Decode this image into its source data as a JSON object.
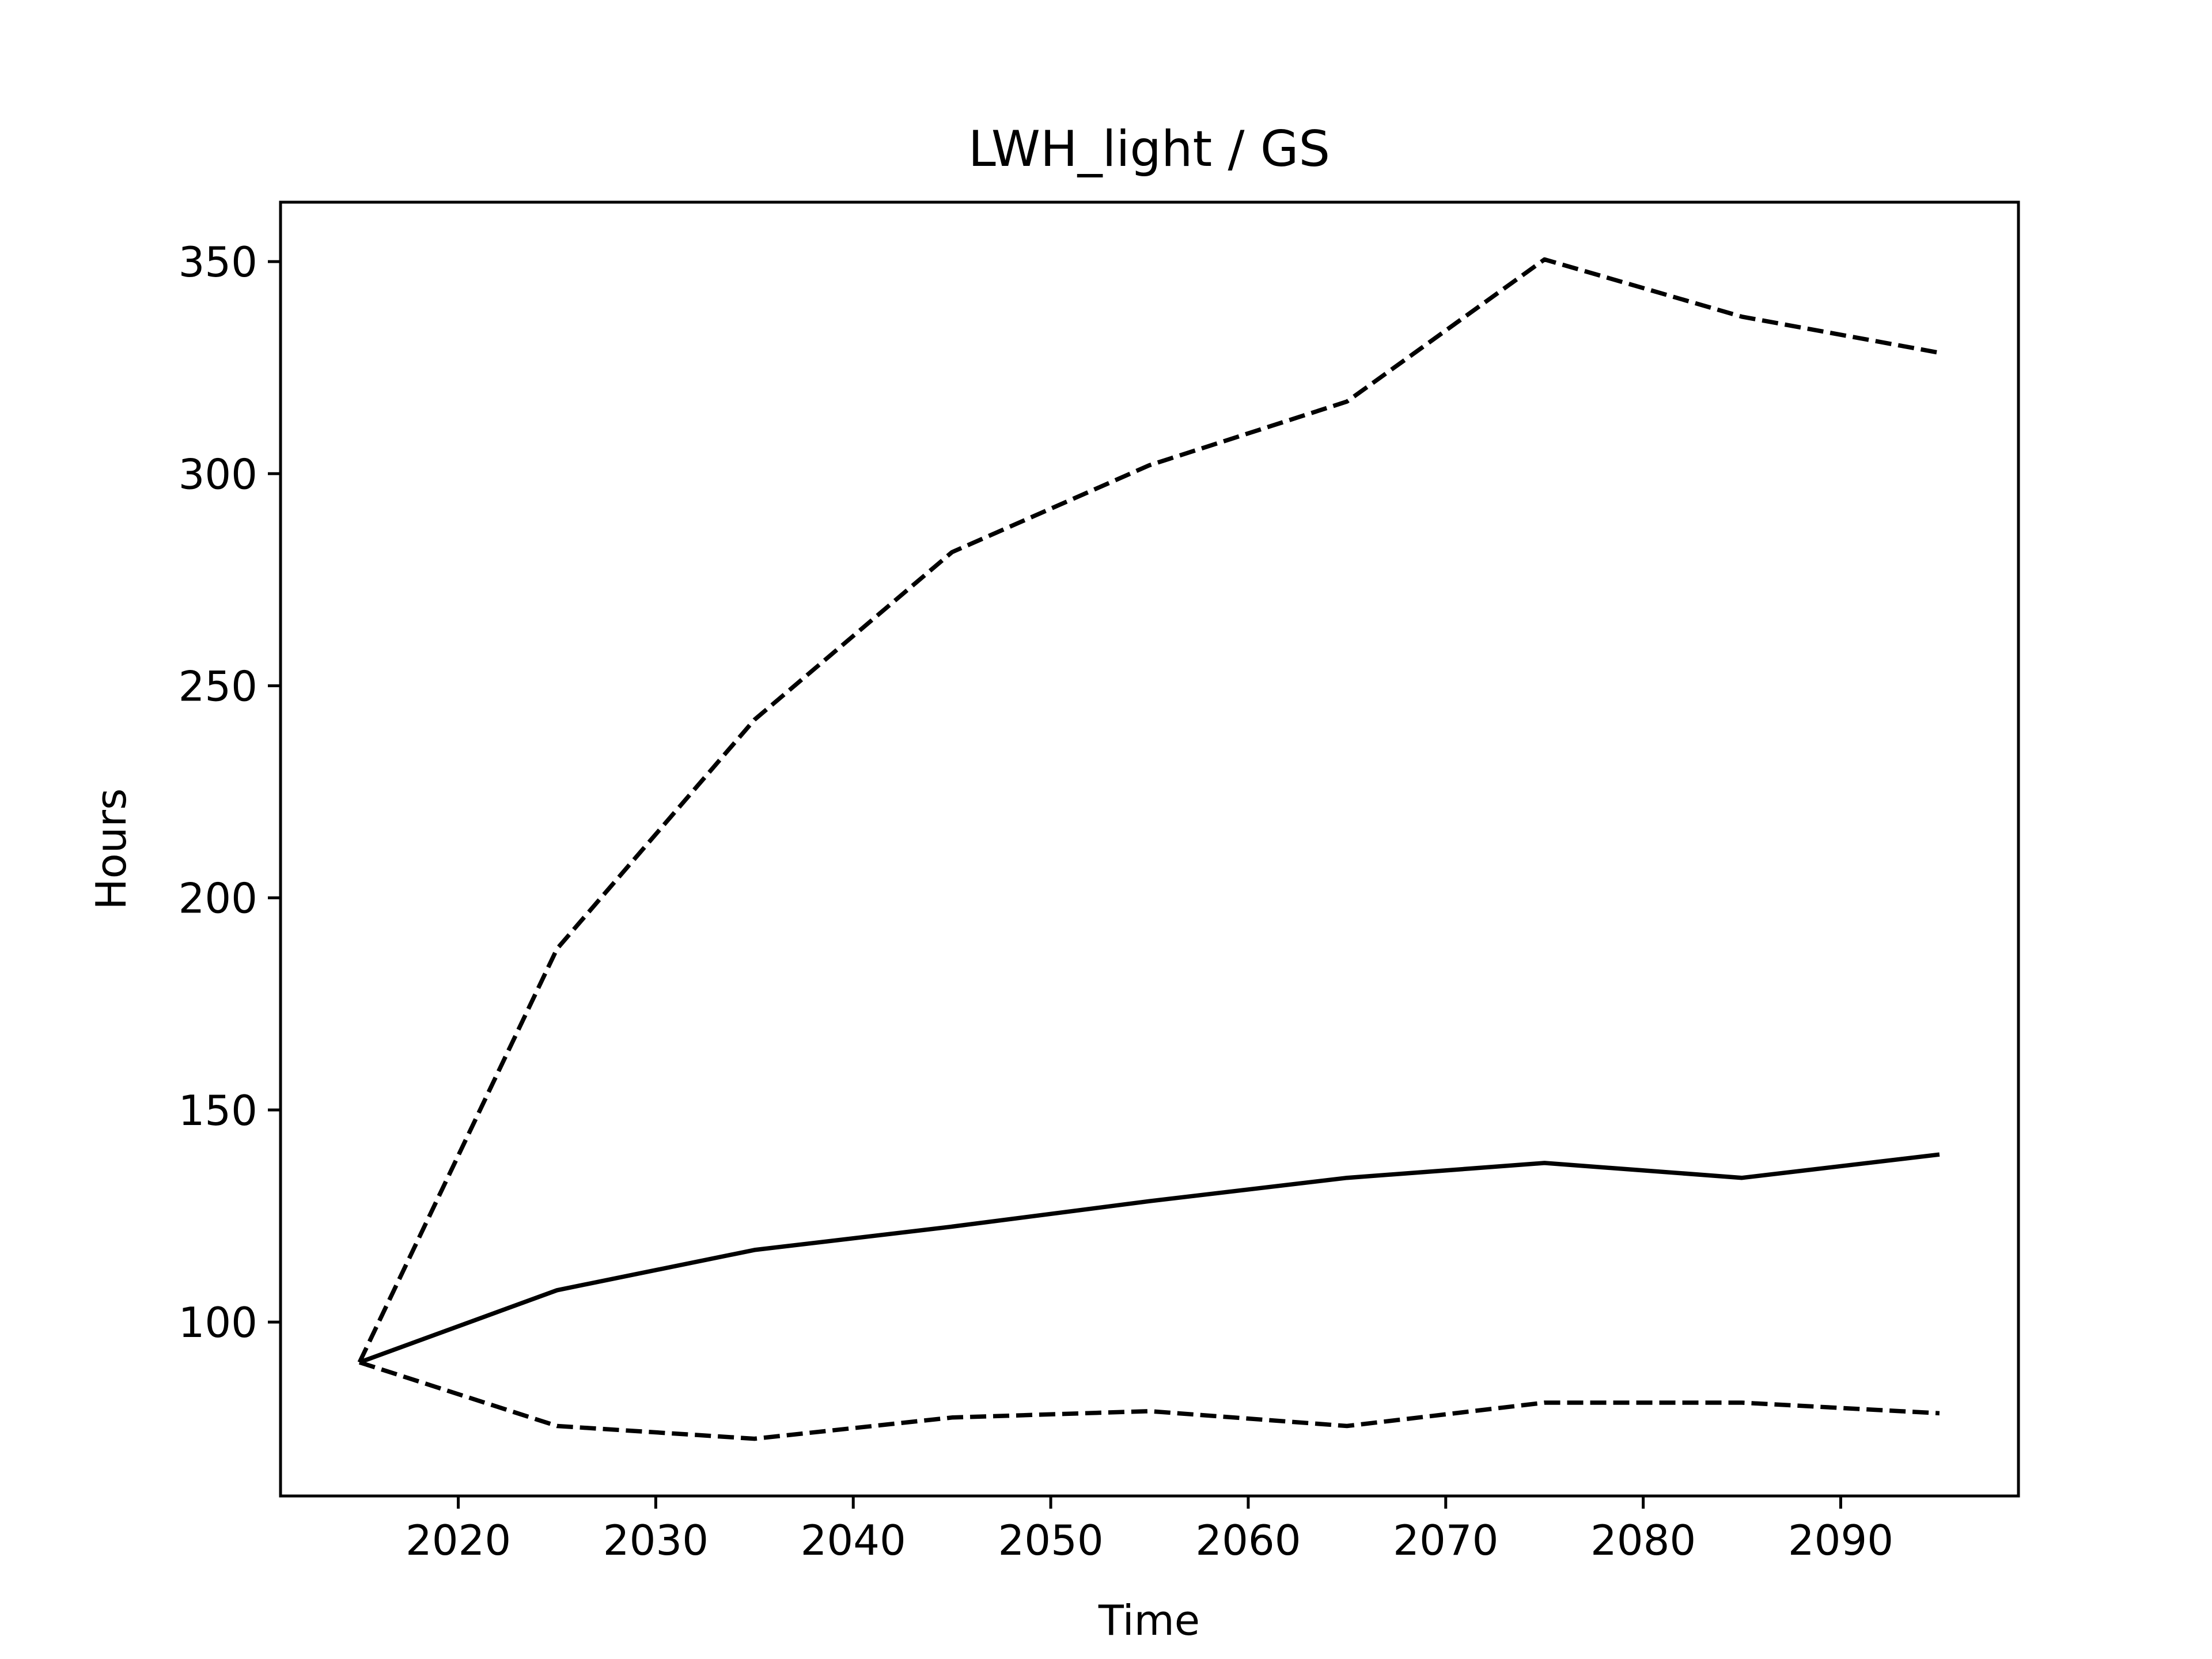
{
  "chart_data": {
    "type": "line",
    "title": "LWH_light / GS",
    "xlabel": "Time",
    "ylabel": "Hours",
    "xlim": [
      2011,
      2099
    ],
    "ylim": [
      59,
      364
    ],
    "xticks": [
      2020,
      2030,
      2040,
      2050,
      2060,
      2070,
      2080,
      2090
    ],
    "yticks": [
      100,
      150,
      200,
      250,
      300,
      350
    ],
    "grid": false,
    "legend": "none",
    "x": [
      2015,
      2025,
      2035,
      2045,
      2055,
      2065,
      2075,
      2085,
      2095
    ],
    "series": [
      {
        "style": "solid",
        "color": "#000000",
        "values": [
          90.5,
          107.5,
          117,
          122.5,
          128.5,
          134,
          137.5,
          134,
          139.5
        ]
      },
      {
        "style": "dashed",
        "color": "#000000",
        "values": [
          90.5,
          188,
          242,
          281.5,
          302,
          317,
          350.5,
          337,
          328.5
        ]
      },
      {
        "style": "dashed",
        "color": "#000000",
        "values": [
          90.5,
          75.5,
          72.5,
          77.5,
          79,
          75.5,
          81,
          81,
          78.5
        ]
      }
    ]
  }
}
